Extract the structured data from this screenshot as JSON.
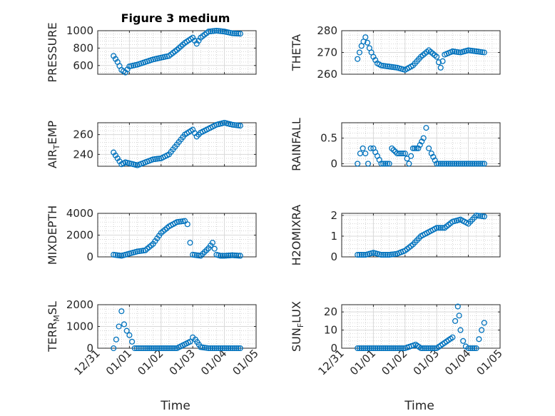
{
  "chart_data": [
    {
      "type": "scatter",
      "title": "Figure 3 medium",
      "ylabel": "PRESSURE",
      "ylim": [
        500,
        1000
      ],
      "yticks": [
        600,
        800,
        1000
      ],
      "xlim": [
        "12/31",
        "01/05"
      ],
      "x": [
        "12/31 12:00",
        "12/31 15:00",
        "12/31 18:00",
        "12/31 21:00",
        "01/01 00:00",
        "01/01 06:00",
        "01/01 12:00",
        "01/01 18:00",
        "01/02 00:00",
        "01/02 06:00",
        "01/02 12:00",
        "01/02 18:00",
        "01/02 21:00",
        "01/03 00:00",
        "01/03 03:00",
        "01/03 06:00",
        "01/03 12:00",
        "01/03 18:00",
        "01/04 00:00",
        "01/04 06:00",
        "01/04 12:00"
      ],
      "y": [
        710,
        640,
        550,
        520,
        590,
        610,
        640,
        670,
        690,
        710,
        780,
        860,
        890,
        920,
        850,
        920,
        990,
        1000,
        990,
        970,
        965
      ],
      "series": [
        {
          "values": [
            710,
            640,
            550,
            520,
            590,
            610,
            640,
            670,
            690,
            710,
            780,
            860,
            890,
            920,
            850,
            920,
            990,
            1000,
            990,
            970,
            965
          ]
        }
      ],
      "grid": true
    },
    {
      "type": "scatter",
      "title": "",
      "ylabel": "THETA",
      "ylim": [
        260,
        280
      ],
      "yticks": [
        260,
        270,
        280
      ],
      "xlim": [
        "12/31",
        "01/05"
      ],
      "x": [
        "12/31 12:00",
        "12/31 15:00",
        "12/31 18:00",
        "12/31 21:00",
        "01/01 00:00",
        "01/01 03:00",
        "01/01 06:00",
        "01/01 12:00",
        "01/01 18:00",
        "01/02 00:00",
        "01/02 06:00",
        "01/02 12:00",
        "01/02 18:00",
        "01/03 00:00",
        "01/03 03:00",
        "01/03 06:00",
        "01/03 12:00",
        "01/03 18:00",
        "01/04 00:00",
        "01/04 06:00",
        "01/04 12:00"
      ],
      "y": [
        267,
        273,
        277,
        272,
        268,
        265,
        264,
        263.5,
        263,
        262,
        264,
        268,
        271,
        268,
        263,
        269,
        270.5,
        270,
        271,
        270.5,
        270
      ],
      "series": [
        {
          "values": [
            267,
            273,
            277,
            272,
            268,
            265,
            264,
            263.5,
            263,
            262,
            264,
            268,
            271,
            268,
            263,
            269,
            270.5,
            270,
            271,
            270.5,
            270
          ]
        }
      ],
      "grid": true
    },
    {
      "type": "scatter",
      "title": "",
      "ylabel": "AIR_TEMP",
      "ylabel_display": {
        "main": "AIR",
        "sub": "T",
        "rest": "EMP"
      },
      "ylim": [
        228,
        272
      ],
      "yticks": [
        240,
        260
      ],
      "xlim": [
        "12/31",
        "01/05"
      ],
      "x": [
        "12/31 12:00",
        "12/31 15:00",
        "12/31 18:00",
        "12/31 21:00",
        "01/01 00:00",
        "01/01 06:00",
        "01/01 12:00",
        "01/01 18:00",
        "01/02 00:00",
        "01/02 06:00",
        "01/02 12:00",
        "01/02 18:00",
        "01/03 00:00",
        "01/03 03:00",
        "01/03 06:00",
        "01/03 12:00",
        "01/03 18:00",
        "01/04 00:00",
        "01/04 06:00",
        "01/04 12:00"
      ],
      "y": [
        242,
        236,
        230,
        232,
        231,
        229,
        232,
        235,
        236,
        240,
        250,
        260,
        265,
        258,
        262,
        266,
        270,
        272,
        270,
        269
      ],
      "series": [
        {
          "values": [
            242,
            236,
            230,
            232,
            231,
            229,
            232,
            235,
            236,
            240,
            250,
            260,
            265,
            258,
            262,
            266,
            270,
            272,
            270,
            269
          ]
        }
      ],
      "grid": true
    },
    {
      "type": "scatter",
      "title": "",
      "ylabel": "RAINFALL",
      "ylim": [
        -0.05,
        0.8
      ],
      "yticks": [
        0,
        0.5
      ],
      "xlim": [
        "12/31",
        "01/05"
      ],
      "x": [
        "12/31 12:00",
        "12/31 14:00",
        "12/31 16:00",
        "12/31 18:00",
        "12/31 20:00",
        "12/31 22:00",
        "01/01 00:00",
        "01/01 06:00",
        "01/01 12:00",
        "01/01 14:00",
        "01/01 18:00",
        "01/02 00:00",
        "01/02 03:00",
        "01/02 06:00",
        "01/02 10:00",
        "01/02 14:00",
        "01/02 16:00",
        "01/02 18:00",
        "01/02 20:00",
        "01/03 00:00",
        "01/03 12:00",
        "01/04 00:00",
        "01/04 12:00"
      ],
      "y": [
        0,
        0.2,
        0.3,
        0.2,
        0,
        0.3,
        0.3,
        0,
        0,
        0.3,
        0.2,
        0.2,
        0,
        0.3,
        0.3,
        0.5,
        0.7,
        0.3,
        0.2,
        0,
        0,
        0,
        0
      ],
      "series": [
        {
          "values": [
            0,
            0.2,
            0.3,
            0.2,
            0,
            0.3,
            0.3,
            0,
            0,
            0.3,
            0.2,
            0.2,
            0,
            0.3,
            0.3,
            0.5,
            0.7,
            0.3,
            0.2,
            0,
            0,
            0,
            0
          ]
        }
      ],
      "grid": true
    },
    {
      "type": "scatter",
      "title": "",
      "ylabel": "MIXDEPTH",
      "ylim": [
        0,
        4000
      ],
      "yticks": [
        0,
        2000,
        4000
      ],
      "xlim": [
        "12/31",
        "01/05"
      ],
      "x": [
        "12/31 12:00",
        "12/31 18:00",
        "01/01 00:00",
        "01/01 06:00",
        "01/01 12:00",
        "01/01 18:00",
        "01/02 00:00",
        "01/02 06:00",
        "01/02 12:00",
        "01/02 18:00",
        "01/02 20:00",
        "01/02 22:00",
        "01/03 00:00",
        "01/03 06:00",
        "01/03 12:00",
        "01/03 15:00",
        "01/03 18:00",
        "01/03 21:00",
        "01/04 00:00",
        "01/04 06:00",
        "01/04 12:00"
      ],
      "y": [
        200,
        100,
        300,
        500,
        600,
        1200,
        2200,
        2800,
        3200,
        3300,
        3000,
        1300,
        200,
        100,
        800,
        1300,
        200,
        100,
        100,
        150,
        100
      ],
      "series": [
        {
          "values": [
            200,
            100,
            300,
            500,
            600,
            1200,
            2200,
            2800,
            3200,
            3300,
            3000,
            1300,
            200,
            100,
            800,
            1300,
            200,
            100,
            100,
            150,
            100
          ]
        }
      ],
      "grid": true
    },
    {
      "type": "scatter",
      "title": "",
      "ylabel": "H2OMIXRA",
      "ylim": [
        0,
        2.1
      ],
      "yticks": [
        0,
        1,
        2
      ],
      "xlim": [
        "12/31",
        "01/05"
      ],
      "x": [
        "12/31 12:00",
        "12/31 18:00",
        "01/01 00:00",
        "01/01 06:00",
        "01/01 12:00",
        "01/01 18:00",
        "01/02 00:00",
        "01/02 06:00",
        "01/02 12:00",
        "01/02 18:00",
        "01/03 00:00",
        "01/03 06:00",
        "01/03 12:00",
        "01/03 18:00",
        "01/04 00:00",
        "01/04 06:00",
        "01/04 12:00"
      ],
      "y": [
        0.1,
        0.1,
        0.2,
        0.1,
        0.1,
        0.15,
        0.3,
        0.6,
        1.0,
        1.2,
        1.4,
        1.4,
        1.7,
        1.8,
        1.6,
        2.0,
        1.95
      ],
      "series": [
        {
          "values": [
            0.1,
            0.1,
            0.2,
            0.1,
            0.1,
            0.15,
            0.3,
            0.6,
            1.0,
            1.2,
            1.4,
            1.4,
            1.7,
            1.8,
            1.6,
            2.0,
            1.95
          ]
        }
      ],
      "grid": true
    },
    {
      "type": "scatter",
      "title": "",
      "ylabel": "TERR_MSL",
      "ylabel_display": {
        "main": "TERR",
        "sub": "M",
        "rest": "SL"
      },
      "ylim": [
        0,
        2000
      ],
      "yticks": [
        0,
        1000,
        2000
      ],
      "xlim": [
        "12/31",
        "01/05"
      ],
      "x": [
        "12/31 12:00",
        "12/31 14:00",
        "12/31 16:00",
        "12/31 18:00",
        "12/31 20:00",
        "12/31 22:00",
        "01/01 00:00",
        "01/01 02:00",
        "01/01 04:00",
        "01/01 12:00",
        "01/02 00:00",
        "01/02 12:00",
        "01/02 22:00",
        "01/03 00:00",
        "01/03 02:00",
        "01/03 06:00",
        "01/03 12:00",
        "01/04 00:00",
        "01/04 12:00"
      ],
      "y": [
        0,
        400,
        1000,
        1700,
        1100,
        800,
        600,
        300,
        0,
        0,
        0,
        0,
        300,
        500,
        400,
        50,
        0,
        0,
        0
      ],
      "series": [
        {
          "values": [
            0,
            400,
            1000,
            1700,
            1100,
            800,
            600,
            300,
            0,
            0,
            0,
            0,
            300,
            500,
            400,
            50,
            0,
            0,
            0
          ]
        }
      ],
      "grid": true
    },
    {
      "type": "scatter",
      "title": "",
      "ylabel": "SUN_FLUX",
      "ylabel_display": {
        "main": "SUN",
        "sub": "F",
        "rest": "LUX"
      },
      "ylim": [
        0,
        24
      ],
      "yticks": [
        0,
        10,
        20
      ],
      "xlim": [
        "12/31",
        "01/05"
      ],
      "x": [
        "12/31 12:00",
        "01/01 00:00",
        "01/01 12:00",
        "01/02 00:00",
        "01/02 08:00",
        "01/02 12:00",
        "01/03 00:00",
        "01/03 12:00",
        "01/03 14:00",
        "01/03 16:00",
        "01/03 17:00",
        "01/03 18:00",
        "01/03 20:00",
        "01/03 22:00",
        "01/04 00:00",
        "01/04 06:00",
        "01/04 08:00",
        "01/04 10:00",
        "01/04 12:00"
      ],
      "y": [
        0,
        0,
        0,
        0,
        2,
        0,
        0,
        6,
        15,
        23,
        18,
        10,
        4,
        1,
        0,
        0,
        5,
        10,
        14
      ],
      "series": [
        {
          "values": [
            0,
            0,
            0,
            0,
            2,
            0,
            0,
            6,
            15,
            23,
            18,
            10,
            4,
            1,
            0,
            0,
            5,
            10,
            14
          ]
        }
      ],
      "grid": true
    }
  ],
  "xticks": [
    "12/31",
    "01/01",
    "01/02",
    "01/03",
    "01/04",
    "01/05"
  ],
  "xlabel": "Time",
  "colors": {
    "marker": "#0072bd",
    "axis": "#262626",
    "grid_major": "#d9d9d9",
    "grid_minor": "#c4c4c4"
  }
}
